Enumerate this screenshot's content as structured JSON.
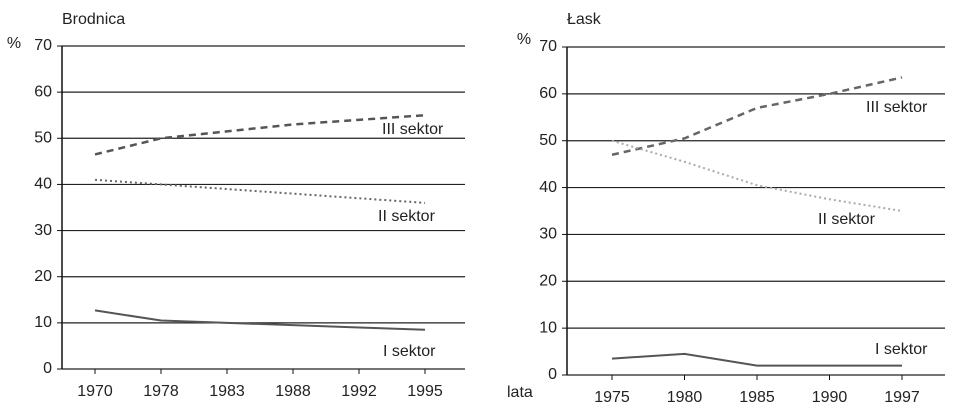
{
  "chart_data": [
    {
      "type": "line",
      "title": "Brodnica",
      "y_label": "%",
      "categories": [
        "1970",
        "1978",
        "1983",
        "1988",
        "1992",
        "1995"
      ],
      "ylim": [
        0,
        70
      ],
      "yticks": [
        0,
        10,
        20,
        30,
        40,
        50,
        60,
        70
      ],
      "grid": true,
      "series": [
        {
          "name": "III sektor",
          "color": "#555555",
          "style": "dashed",
          "values": [
            46.5,
            50,
            51.5,
            53,
            54,
            55
          ]
        },
        {
          "name": "II sektor",
          "color": "#666666",
          "style": "dotted",
          "values": [
            41,
            40,
            39,
            38,
            37,
            36
          ]
        },
        {
          "name": "I sektor",
          "color": "#555555",
          "style": "solid",
          "values": [
            12.7,
            10.5,
            10,
            9.5,
            9,
            8.5
          ]
        }
      ]
    },
    {
      "type": "line",
      "title": "Łask",
      "y_label": "%",
      "x_label": "lata",
      "categories": [
        "1975",
        "1980",
        "1985",
        "1990",
        "1997"
      ],
      "ylim": [
        0,
        70
      ],
      "yticks": [
        0,
        10,
        20,
        30,
        40,
        50,
        60,
        70
      ],
      "grid": true,
      "series": [
        {
          "name": "III sektor",
          "color": "#666666",
          "style": "dashed",
          "values": [
            47,
            50.5,
            57,
            60,
            63.5
          ]
        },
        {
          "name": "II sektor",
          "color": "#aaaaaa",
          "style": "dotted",
          "values": [
            50,
            45.5,
            40.5,
            37.5,
            35
          ]
        },
        {
          "name": "I sektor",
          "color": "#555555",
          "style": "solid",
          "values": [
            3.5,
            4.5,
            2,
            2,
            2
          ]
        }
      ]
    }
  ]
}
